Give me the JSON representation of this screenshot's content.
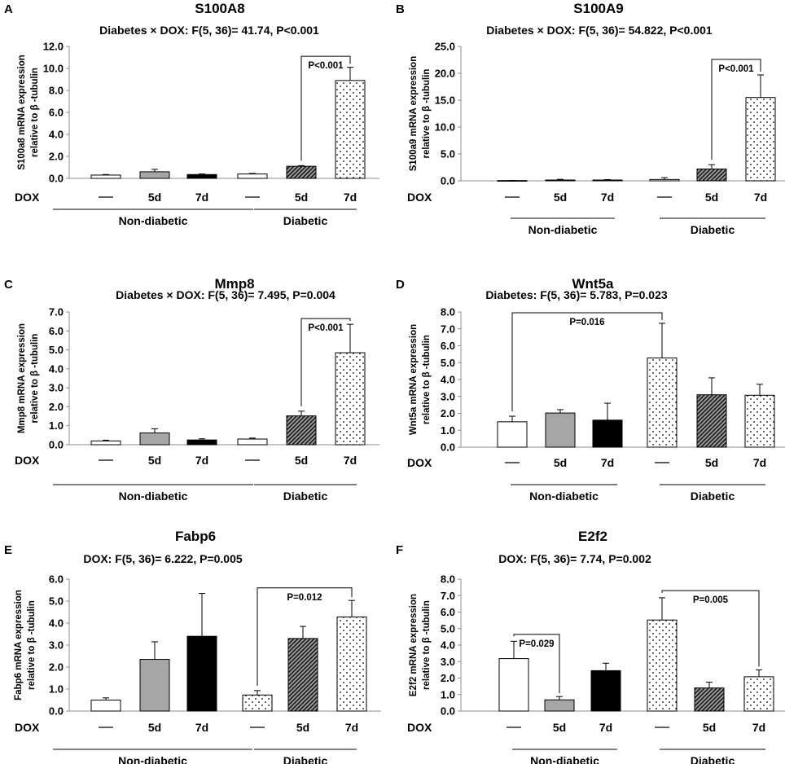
{
  "figure": {
    "dox_label": "DOX",
    "bar_labels": [
      "—",
      "5d",
      "7d",
      "—",
      "5d",
      "7d"
    ],
    "groups": [
      "Non-diabetic",
      "Diabetic"
    ]
  },
  "chart_data": [
    {
      "panel": "A",
      "type": "bar",
      "title": "S100A8",
      "stat": "Diabetes × DOX: F(5, 36)= 41.74, P<0.001",
      "ylabel": [
        "S100a8 mRNA expression",
        "relative to β -tubulin"
      ],
      "ylim": [
        0,
        12
      ],
      "yticks": [
        "0.0",
        "2.0",
        "4.0",
        "6.0",
        "8.0",
        "10.0",
        "12.0"
      ],
      "categories": [
        "Non-diabetic —",
        "Non-diabetic 5d",
        "Non-diabetic 7d",
        "Diabetic —",
        "Diabetic 5d",
        "Diabetic 7d"
      ],
      "values": [
        0.3,
        0.6,
        0.35,
        0.4,
        1.1,
        8.9
      ],
      "errors": [
        0.05,
        0.22,
        0.05,
        0.05,
        0.06,
        1.2
      ],
      "fills": [
        "white",
        "gray",
        "black",
        "white",
        "hatch",
        "dots"
      ],
      "sig": [
        {
          "from": 4,
          "to": 5,
          "label": "P<0.001",
          "level": 11.1
        }
      ]
    },
    {
      "panel": "B",
      "type": "bar",
      "title": "S100A9",
      "stat": "Diabetes × DOX: F(5, 36)= 54.822, P<0.001",
      "ylabel": [
        "S100a9 mRNA expression",
        "relative to β -tubulin"
      ],
      "ylim": [
        0,
        25
      ],
      "yticks": [
        "0.0",
        "5.0",
        "10.0",
        "15.0",
        "20.0",
        "25.0"
      ],
      "categories": [
        "Non-diabetic —",
        "Non-diabetic 5d",
        "Non-diabetic 7d",
        "Diabetic —",
        "Diabetic 5d",
        "Diabetic 7d"
      ],
      "values": [
        0.05,
        0.15,
        0.15,
        0.25,
        2.2,
        15.5
      ],
      "errors": [
        0.02,
        0.12,
        0.08,
        0.35,
        0.8,
        4.2
      ],
      "fills": [
        "white",
        "gray",
        "black",
        "white",
        "hatch",
        "dots"
      ],
      "sig": [
        {
          "from": 4,
          "to": 5,
          "label": "P<0.001",
          "level": 22.6
        }
      ]
    },
    {
      "panel": "C",
      "type": "bar",
      "title": "Mmp8",
      "stat": "Diabetes × DOX: F(5, 36)= 7.495, P=0.004",
      "ylabel": [
        "Mmp8 mRNA expression",
        "relative to β -tubulin"
      ],
      "ylim": [
        0,
        7
      ],
      "yticks": [
        "0.0",
        "1.0",
        "2.0",
        "3.0",
        "4.0",
        "5.0",
        "6.0",
        "7.0"
      ],
      "categories": [
        "Non-diabetic —",
        "Non-diabetic 5d",
        "Non-diabetic 7d",
        "Diabetic —",
        "Diabetic 5d",
        "Diabetic 7d"
      ],
      "values": [
        0.2,
        0.62,
        0.25,
        0.3,
        1.52,
        4.85
      ],
      "errors": [
        0.04,
        0.22,
        0.06,
        0.05,
        0.25,
        1.5
      ],
      "fills": [
        "white",
        "gray",
        "black",
        "white",
        "hatch",
        "dots"
      ],
      "sig": [
        {
          "from": 4,
          "to": 5,
          "label": "P<0.001",
          "level": 6.65
        }
      ]
    },
    {
      "panel": "D",
      "type": "bar",
      "title": "Wnt5a",
      "stat": "Diabetes: F(5, 36)= 5.783, P=0.023",
      "ylabel": [
        "Wnt5a mRNA expression",
        "relative to β -tubulin"
      ],
      "ylim": [
        0,
        8
      ],
      "yticks": [
        "0.0",
        "1.0",
        "2.0",
        "3.0",
        "4.0",
        "5.0",
        "6.0",
        "7.0",
        "8.0"
      ],
      "categories": [
        "Non-diabetic —",
        "Non-diabetic 5d",
        "Non-diabetic 7d",
        "Diabetic —",
        "Diabetic 5d",
        "Diabetic 7d"
      ],
      "values": [
        1.5,
        2.02,
        1.6,
        5.28,
        3.1,
        3.07
      ],
      "errors": [
        0.33,
        0.2,
        1.0,
        2.05,
        1.0,
        0.65
      ],
      "fills": [
        "white",
        "gray",
        "black",
        "dots",
        "hatch",
        "dots"
      ],
      "sig": [
        {
          "from": 0,
          "to": 3,
          "label": "P=0.016",
          "level": 7.95
        }
      ]
    },
    {
      "panel": "E",
      "type": "bar",
      "title": "Fabp6",
      "stat": "DOX: F(5, 36)= 6.222, P=0.005",
      "ylabel": [
        "Fabp6 mRNA expression",
        "relative to β -tubulin"
      ],
      "ylim": [
        0,
        6
      ],
      "yticks": [
        "0.0",
        "1.0",
        "2.0",
        "3.0",
        "4.0",
        "5.0",
        "6.0"
      ],
      "categories": [
        "Non-diabetic —",
        "Non-diabetic 5d",
        "Non-diabetic 7d",
        "Diabetic —",
        "Diabetic 5d",
        "Diabetic 7d"
      ],
      "values": [
        0.5,
        2.35,
        3.4,
        0.73,
        3.3,
        4.28
      ],
      "errors": [
        0.1,
        0.8,
        1.95,
        0.2,
        0.55,
        0.75
      ],
      "fills": [
        "white",
        "gray",
        "black",
        "dots",
        "hatch",
        "dots"
      ],
      "sig": [
        {
          "from": 3,
          "to": 5,
          "label": "P=0.012",
          "level": 5.6
        }
      ]
    },
    {
      "panel": "F",
      "type": "bar",
      "title": "E2f2",
      "stat": "DOX: F(5, 36)= 7.74, P=0.002",
      "ylabel": [
        "E2f2 mRNA expression",
        "relative to β -tubulin"
      ],
      "ylim": [
        0,
        8
      ],
      "yticks": [
        "0.0",
        "1.0",
        "2.0",
        "3.0",
        "4.0",
        "5.0",
        "6.0",
        "7.0",
        "8.0"
      ],
      "categories": [
        "Non-diabetic —",
        "Non-diabetic 5d",
        "Non-diabetic 7d",
        "Diabetic —",
        "Diabetic 5d",
        "Diabetic 7d"
      ],
      "values": [
        3.18,
        0.68,
        2.45,
        5.52,
        1.4,
        2.08
      ],
      "errors": [
        1.05,
        0.2,
        0.45,
        1.35,
        0.35,
        0.42
      ],
      "fills": [
        "white",
        "gray",
        "black",
        "dots",
        "hatch",
        "dots"
      ],
      "sig": [
        {
          "from": 0,
          "to": 1,
          "label": "P=0.029",
          "level": 4.65
        },
        {
          "from": 3,
          "to": 5,
          "label": "P=0.005",
          "level": 7.3
        }
      ]
    }
  ]
}
